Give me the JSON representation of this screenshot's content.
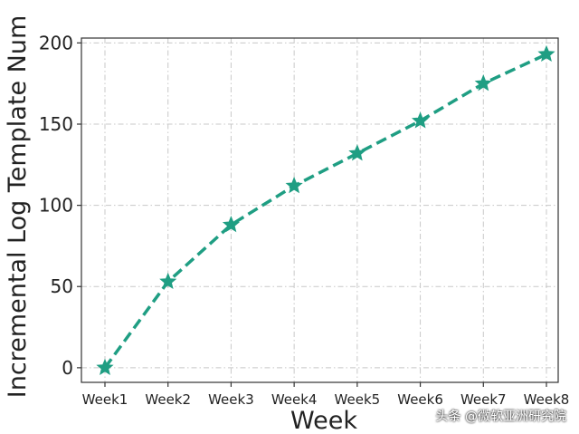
{
  "chart_data": {
    "type": "line",
    "categories": [
      "Week1",
      "Week2",
      "Week3",
      "Week4",
      "Week5",
      "Week6",
      "Week7",
      "Week8"
    ],
    "values": [
      0,
      53,
      88,
      112,
      132,
      152,
      175,
      193
    ],
    "xlabel": "Week",
    "ylabel": "Incremental Log Template Num",
    "ylim": [
      -9,
      203
    ],
    "yticks": [
      0,
      50,
      100,
      150,
      200
    ],
    "grid": true,
    "marker": "star",
    "line_style": "dashed",
    "colors": {
      "series": "#1f9e83",
      "grid": "#c8c8c8",
      "axis": "#333333"
    }
  },
  "watermark": "头条 @微软亚洲研究院"
}
